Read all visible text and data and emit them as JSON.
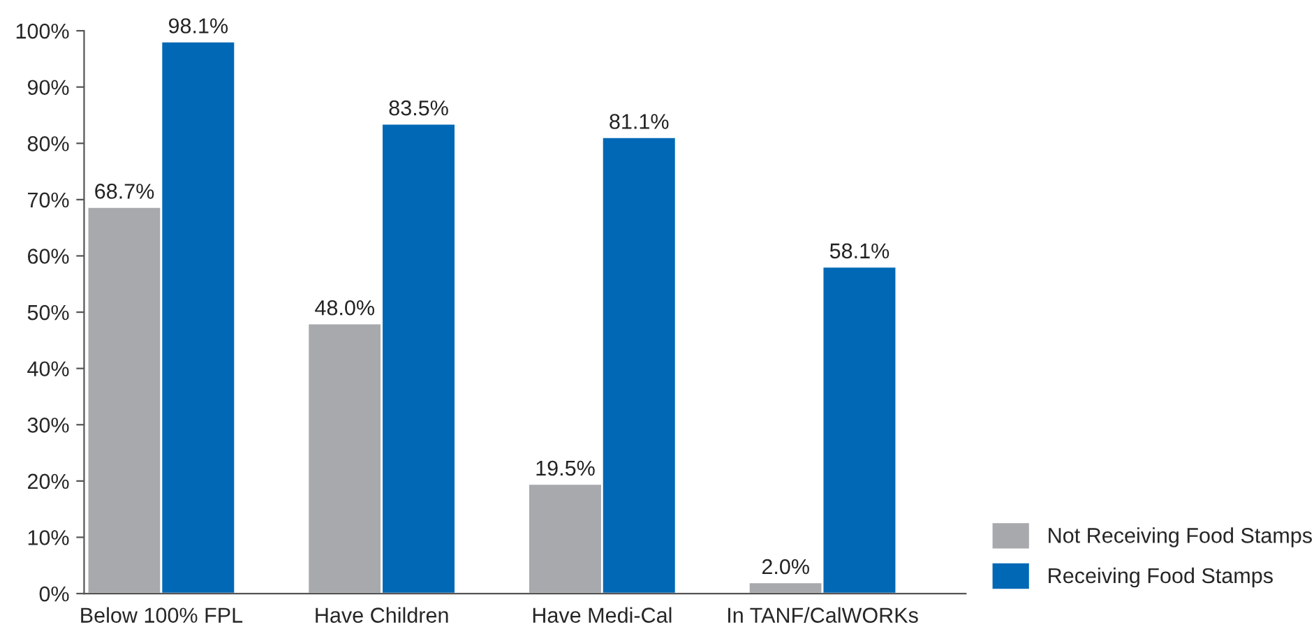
{
  "chart_data": {
    "type": "bar",
    "categories": [
      "Below 100% FPL",
      "Have Children",
      "Have Medi-Cal",
      "In TANF/CalWORKs"
    ],
    "series": [
      {
        "name": "Not Receiving Food Stamps",
        "color": "#a7a9ac",
        "values": [
          68.7,
          48.0,
          19.5,
          2.0
        ],
        "value_labels": [
          "68.7%",
          "48.0%",
          "19.5%",
          "2.0%"
        ]
      },
      {
        "name": "Receiving Food Stamps",
        "color": "#0068b5",
        "values": [
          98.1,
          83.5,
          81.1,
          58.1
        ],
        "value_labels": [
          "98.1%",
          "83.5%",
          "81.1%",
          "58.1%"
        ]
      }
    ],
    "ylim": [
      0,
      100
    ],
    "yticks": [
      {
        "value": 0,
        "label": "0%"
      },
      {
        "value": 10,
        "label": "10%"
      },
      {
        "value": 20,
        "label": "20%"
      },
      {
        "value": 30,
        "label": "30%"
      },
      {
        "value": 40,
        "label": "40%"
      },
      {
        "value": 50,
        "label": "50%"
      },
      {
        "value": 60,
        "label": "60%"
      },
      {
        "value": 70,
        "label": "70%"
      },
      {
        "value": 80,
        "label": "80%"
      },
      {
        "value": 90,
        "label": "90%"
      },
      {
        "value": 100,
        "label": "100%"
      }
    ],
    "grid": false,
    "legend": "bottom right"
  }
}
